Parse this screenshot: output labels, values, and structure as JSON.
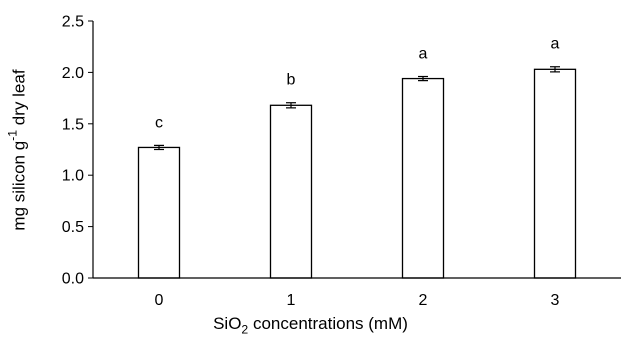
{
  "chart_data": {
    "type": "bar",
    "categories": [
      "0",
      "1",
      "2",
      "3"
    ],
    "values": [
      1.27,
      1.68,
      1.94,
      2.03
    ],
    "errors": [
      0.02,
      0.025,
      0.02,
      0.025
    ],
    "letters": [
      "c",
      "b",
      "a",
      "a"
    ],
    "xlabel": {
      "pre": "SiO",
      "sub": "2",
      "post": " concentrations (mM)"
    },
    "ylabel": {
      "pre": "mg silicon g",
      "sup": "-1",
      "post": " dry leaf"
    },
    "ylim": [
      0,
      2.5
    ],
    "yticks": [
      "0.0",
      "0.5",
      "1.0",
      "1.5",
      "2.0",
      "2.5"
    ],
    "grid": false,
    "bar_fill": "#ffffff",
    "bar_stroke": "#000000"
  }
}
